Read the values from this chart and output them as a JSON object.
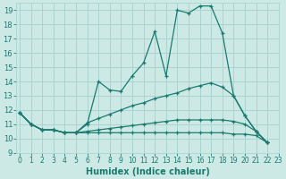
{
  "title": "",
  "xlabel": "Humidex (Indice chaleur)",
  "bg_color": "#cce9e6",
  "grid_color": "#aad4d0",
  "line_color": "#1a7a6e",
  "series": [
    [
      11.8,
      11.0,
      10.6,
      10.6,
      10.4,
      10.4,
      11.0,
      14.0,
      13.4,
      13.3,
      14.4,
      15.3,
      17.5,
      14.4,
      19.0,
      18.8,
      19.3,
      19.3,
      17.4,
      13.0,
      11.6,
      10.5,
      9.7
    ],
    [
      11.8,
      11.0,
      10.6,
      10.6,
      10.4,
      10.4,
      11.1,
      11.4,
      11.7,
      12.0,
      12.3,
      12.5,
      12.8,
      13.0,
      13.2,
      13.5,
      13.7,
      13.9,
      13.6,
      13.0,
      11.6,
      10.5,
      9.7
    ],
    [
      11.8,
      11.0,
      10.6,
      10.6,
      10.4,
      10.4,
      10.5,
      10.6,
      10.7,
      10.8,
      10.9,
      11.0,
      11.1,
      11.2,
      11.3,
      11.3,
      11.3,
      11.3,
      11.3,
      11.2,
      11.0,
      10.5,
      9.7
    ],
    [
      11.8,
      11.0,
      10.6,
      10.6,
      10.4,
      10.4,
      10.4,
      10.4,
      10.4,
      10.4,
      10.4,
      10.4,
      10.4,
      10.4,
      10.4,
      10.4,
      10.4,
      10.4,
      10.4,
      10.3,
      10.3,
      10.2,
      9.7
    ]
  ],
  "xlim": [
    -0.3,
    23.0
  ],
  "ylim": [
    9.0,
    19.5
  ],
  "yticks": [
    9,
    10,
    11,
    12,
    13,
    14,
    15,
    16,
    17,
    18,
    19
  ],
  "xticks": [
    0,
    1,
    2,
    3,
    4,
    5,
    6,
    7,
    8,
    9,
    10,
    11,
    12,
    13,
    14,
    15,
    16,
    17,
    18,
    19,
    20,
    21,
    22,
    23
  ],
  "tick_fontsize": 5.5,
  "xlabel_fontsize": 7,
  "ylabel_fontsize": 6,
  "linewidth": 0.9,
  "markersize": 3.0
}
